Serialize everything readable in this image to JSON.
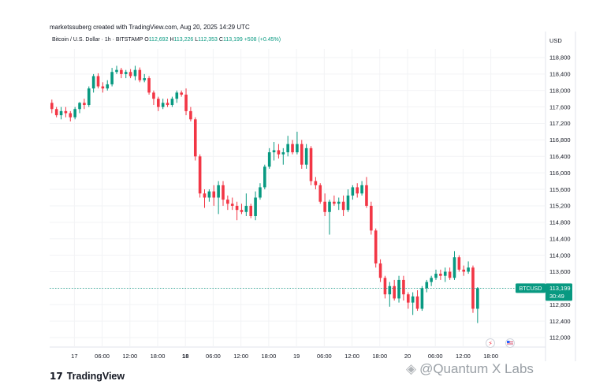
{
  "header": {
    "created_by": "marketssuberg created with TradingView.com, Aug 20, 2025 14:29 UTC"
  },
  "legend": {
    "symbol": "Bitcoin / U.S. Dollar · 1h · BITSTAMP",
    "o_label": "O",
    "o_value": "112,692",
    "h_label": "H",
    "h_value": "113,226",
    "l_label": "L",
    "l_value": "112,353",
    "c_label": "C",
    "c_value": "113,199",
    "change": "+508 (+0.45%)"
  },
  "currency": "USD",
  "price_tag": {
    "symbol": "BTCUSD",
    "price": "113,199",
    "countdown": "30:49"
  },
  "footer": {
    "logo": "TradingView"
  },
  "watermark": {
    "text": "@Quantum X Labs"
  },
  "colors": {
    "up": "#089981",
    "down": "#f23645",
    "grid": "#f2f3f5",
    "axis_text": "#131722"
  },
  "chart_data": {
    "type": "candlestick",
    "title": "Bitcoin / U.S. Dollar · 1h · BITSTAMP",
    "ylim": [
      111900,
      119000
    ],
    "y_ticks": [
      "118,800",
      "118,400",
      "118,000",
      "117,600",
      "117,200",
      "116,800",
      "116,400",
      "116,000",
      "115,600",
      "115,200",
      "114,800",
      "114,400",
      "114,000",
      "113,600",
      "113,200",
      "112,800",
      "112,400",
      "112,000"
    ],
    "x_ticks": [
      {
        "label": "17",
        "bold": false,
        "index": 5
      },
      {
        "label": "06:00",
        "bold": false,
        "index": 11
      },
      {
        "label": "12:00",
        "bold": false,
        "index": 17
      },
      {
        "label": "18:00",
        "bold": false,
        "index": 23
      },
      {
        "label": "18",
        "bold": true,
        "index": 29
      },
      {
        "label": "06:00",
        "bold": false,
        "index": 35
      },
      {
        "label": "12:00",
        "bold": false,
        "index": 41
      },
      {
        "label": "18:00",
        "bold": false,
        "index": 47
      },
      {
        "label": "19",
        "bold": false,
        "index": 53
      },
      {
        "label": "06:00",
        "bold": false,
        "index": 59
      },
      {
        "label": "12:00",
        "bold": false,
        "index": 65
      },
      {
        "label": "18:00",
        "bold": false,
        "index": 71
      },
      {
        "label": "20",
        "bold": false,
        "index": 77
      },
      {
        "label": "06:00",
        "bold": false,
        "index": 83
      },
      {
        "label": "12:00",
        "bold": false,
        "index": 89
      },
      {
        "label": "18:00",
        "bold": false,
        "index": 95
      }
    ],
    "candles": [
      {
        "o": 117700,
        "h": 117780,
        "l": 117450,
        "c": 117550
      },
      {
        "o": 117550,
        "h": 117600,
        "l": 117350,
        "c": 117400
      },
      {
        "o": 117400,
        "h": 117600,
        "l": 117300,
        "c": 117500
      },
      {
        "o": 117500,
        "h": 117600,
        "l": 117350,
        "c": 117450
      },
      {
        "o": 117450,
        "h": 117500,
        "l": 117250,
        "c": 117350
      },
      {
        "o": 117350,
        "h": 117600,
        "l": 117300,
        "c": 117550
      },
      {
        "o": 117550,
        "h": 117720,
        "l": 117450,
        "c": 117700
      },
      {
        "o": 117700,
        "h": 117800,
        "l": 117550,
        "c": 117650
      },
      {
        "o": 117650,
        "h": 118100,
        "l": 117600,
        "c": 118050
      },
      {
        "o": 118050,
        "h": 118400,
        "l": 117950,
        "c": 118350
      },
      {
        "o": 118350,
        "h": 118420,
        "l": 118050,
        "c": 118100
      },
      {
        "o": 118100,
        "h": 118200,
        "l": 117950,
        "c": 118050
      },
      {
        "o": 118050,
        "h": 118250,
        "l": 118000,
        "c": 118150
      },
      {
        "o": 118150,
        "h": 118550,
        "l": 118100,
        "c": 118450
      },
      {
        "o": 118450,
        "h": 118600,
        "l": 118400,
        "c": 118500
      },
      {
        "o": 118500,
        "h": 118550,
        "l": 118300,
        "c": 118400
      },
      {
        "o": 118400,
        "h": 118500,
        "l": 118300,
        "c": 118450
      },
      {
        "o": 118450,
        "h": 118520,
        "l": 118300,
        "c": 118350
      },
      {
        "o": 118350,
        "h": 118600,
        "l": 118250,
        "c": 118500
      },
      {
        "o": 118500,
        "h": 118560,
        "l": 118200,
        "c": 118250
      },
      {
        "o": 118250,
        "h": 118400,
        "l": 118200,
        "c": 118300
      },
      {
        "o": 118300,
        "h": 118350,
        "l": 117900,
        "c": 117950
      },
      {
        "o": 117950,
        "h": 118000,
        "l": 117650,
        "c": 117800
      },
      {
        "o": 117800,
        "h": 117850,
        "l": 117500,
        "c": 117600
      },
      {
        "o": 117600,
        "h": 117800,
        "l": 117550,
        "c": 117700
      },
      {
        "o": 117700,
        "h": 117800,
        "l": 117600,
        "c": 117650
      },
      {
        "o": 117650,
        "h": 117850,
        "l": 117600,
        "c": 117800
      },
      {
        "o": 117800,
        "h": 118000,
        "l": 117700,
        "c": 117950
      },
      {
        "o": 117950,
        "h": 118000,
        "l": 117850,
        "c": 117900
      },
      {
        "o": 117900,
        "h": 118050,
        "l": 117400,
        "c": 117500
      },
      {
        "o": 117500,
        "h": 117600,
        "l": 117250,
        "c": 117300
      },
      {
        "o": 117300,
        "h": 117350,
        "l": 116300,
        "c": 116400
      },
      {
        "o": 116400,
        "h": 116450,
        "l": 115400,
        "c": 115500
      },
      {
        "o": 115500,
        "h": 115600,
        "l": 115150,
        "c": 115400
      },
      {
        "o": 115400,
        "h": 115600,
        "l": 115300,
        "c": 115550
      },
      {
        "o": 115550,
        "h": 115700,
        "l": 115200,
        "c": 115400
      },
      {
        "o": 115400,
        "h": 115800,
        "l": 115000,
        "c": 115700
      },
      {
        "o": 115700,
        "h": 115800,
        "l": 115200,
        "c": 115350
      },
      {
        "o": 115350,
        "h": 115450,
        "l": 115100,
        "c": 115250
      },
      {
        "o": 115250,
        "h": 115400,
        "l": 115100,
        "c": 115200
      },
      {
        "o": 115200,
        "h": 115300,
        "l": 114850,
        "c": 115100
      },
      {
        "o": 115100,
        "h": 115250,
        "l": 115000,
        "c": 115050
      },
      {
        "o": 115050,
        "h": 115500,
        "l": 114950,
        "c": 115200
      },
      {
        "o": 115200,
        "h": 115250,
        "l": 114900,
        "c": 114950
      },
      {
        "o": 114950,
        "h": 115550,
        "l": 114850,
        "c": 115400
      },
      {
        "o": 115400,
        "h": 115750,
        "l": 115350,
        "c": 115650
      },
      {
        "o": 115650,
        "h": 116200,
        "l": 115600,
        "c": 116150
      },
      {
        "o": 116150,
        "h": 116600,
        "l": 116100,
        "c": 116500
      },
      {
        "o": 116500,
        "h": 116750,
        "l": 116300,
        "c": 116550
      },
      {
        "o": 116550,
        "h": 116700,
        "l": 116350,
        "c": 116450
      },
      {
        "o": 116450,
        "h": 116600,
        "l": 116200,
        "c": 116500
      },
      {
        "o": 116500,
        "h": 116900,
        "l": 116400,
        "c": 116700
      },
      {
        "o": 116700,
        "h": 116800,
        "l": 116450,
        "c": 116500
      },
      {
        "o": 116500,
        "h": 117000,
        "l": 116450,
        "c": 116700
      },
      {
        "o": 116700,
        "h": 116800,
        "l": 116100,
        "c": 116200
      },
      {
        "o": 116200,
        "h": 116700,
        "l": 116100,
        "c": 116600
      },
      {
        "o": 116600,
        "h": 116650,
        "l": 115700,
        "c": 115800
      },
      {
        "o": 115800,
        "h": 115900,
        "l": 115600,
        "c": 115700
      },
      {
        "o": 115700,
        "h": 115750,
        "l": 115250,
        "c": 115300
      },
      {
        "o": 115300,
        "h": 115500,
        "l": 114950,
        "c": 115050
      },
      {
        "o": 115050,
        "h": 115350,
        "l": 114500,
        "c": 115300
      },
      {
        "o": 115300,
        "h": 115450,
        "l": 115200,
        "c": 115250
      },
      {
        "o": 115250,
        "h": 115400,
        "l": 115100,
        "c": 115300
      },
      {
        "o": 115300,
        "h": 115450,
        "l": 114950,
        "c": 115100
      },
      {
        "o": 115100,
        "h": 115600,
        "l": 115050,
        "c": 115450
      },
      {
        "o": 115450,
        "h": 115700,
        "l": 115350,
        "c": 115650
      },
      {
        "o": 115650,
        "h": 115750,
        "l": 115400,
        "c": 115500
      },
      {
        "o": 115500,
        "h": 115800,
        "l": 115450,
        "c": 115700
      },
      {
        "o": 115700,
        "h": 115900,
        "l": 115150,
        "c": 115200
      },
      {
        "o": 115200,
        "h": 115300,
        "l": 114500,
        "c": 114600
      },
      {
        "o": 114600,
        "h": 114650,
        "l": 113700,
        "c": 113800
      },
      {
        "o": 113800,
        "h": 113900,
        "l": 113350,
        "c": 113450
      },
      {
        "o": 113450,
        "h": 113500,
        "l": 112950,
        "c": 113050
      },
      {
        "o": 113050,
        "h": 113350,
        "l": 112750,
        "c": 113250
      },
      {
        "o": 113250,
        "h": 113400,
        "l": 112900,
        "c": 112950
      },
      {
        "o": 112950,
        "h": 113500,
        "l": 112850,
        "c": 113400
      },
      {
        "o": 113400,
        "h": 113500,
        "l": 112900,
        "c": 113050
      },
      {
        "o": 113050,
        "h": 113100,
        "l": 112700,
        "c": 112850
      },
      {
        "o": 112850,
        "h": 113100,
        "l": 112550,
        "c": 113000
      },
      {
        "o": 113000,
        "h": 113150,
        "l": 112650,
        "c": 112700
      },
      {
        "o": 112700,
        "h": 113250,
        "l": 112650,
        "c": 113200
      },
      {
        "o": 113200,
        "h": 113400,
        "l": 113100,
        "c": 113350
      },
      {
        "o": 113350,
        "h": 113500,
        "l": 113250,
        "c": 113450
      },
      {
        "o": 113450,
        "h": 113650,
        "l": 113400,
        "c": 113550
      },
      {
        "o": 113550,
        "h": 113650,
        "l": 113400,
        "c": 113500
      },
      {
        "o": 113500,
        "h": 113700,
        "l": 113350,
        "c": 113600
      },
      {
        "o": 113600,
        "h": 113700,
        "l": 113400,
        "c": 113450
      },
      {
        "o": 113450,
        "h": 114100,
        "l": 113400,
        "c": 113950
      },
      {
        "o": 113950,
        "h": 114000,
        "l": 113600,
        "c": 113650
      },
      {
        "o": 113650,
        "h": 113750,
        "l": 113500,
        "c": 113600
      },
      {
        "o": 113600,
        "h": 113850,
        "l": 113550,
        "c": 113700
      },
      {
        "o": 113700,
        "h": 113750,
        "l": 112600,
        "c": 112700
      },
      {
        "o": 112700,
        "h": 113226,
        "l": 112353,
        "c": 113199
      }
    ]
  }
}
